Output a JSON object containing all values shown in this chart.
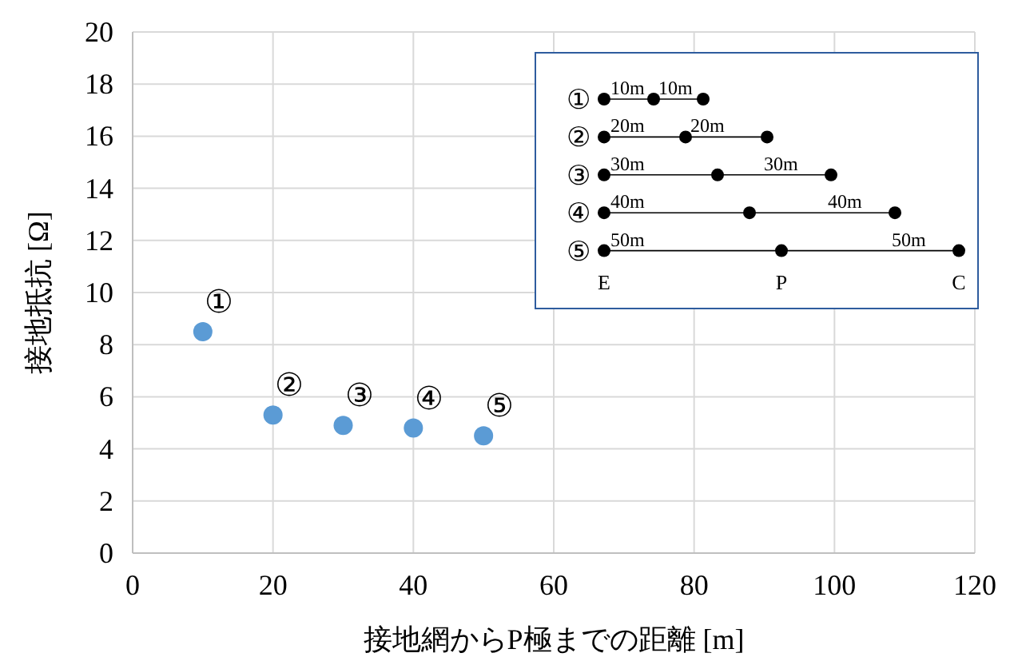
{
  "chart_data": {
    "type": "scatter",
    "xlabel": "接地網からP極までの距離 [m]",
    "ylabel": "接地抵抗 [Ω]",
    "x": [
      10,
      20,
      30,
      40,
      50
    ],
    "series": [
      {
        "color": "#5b9bd5",
        "values": [
          8.5,
          5.3,
          4.9,
          4.8,
          4.5
        ]
      }
    ],
    "xlim": [
      0,
      120
    ],
    "xticks": [
      0,
      20,
      40,
      60,
      80,
      100,
      120
    ],
    "ylim": [
      0,
      20
    ],
    "yticks": [
      0,
      2,
      4,
      6,
      8,
      10,
      12,
      14,
      16,
      18,
      20
    ],
    "grid": true,
    "marker": "circle",
    "annotations": [
      {
        "text": "①",
        "x": 10,
        "y": 8.5
      },
      {
        "text": "②",
        "x": 20,
        "y": 5.3
      },
      {
        "text": "③",
        "x": 30,
        "y": 4.9
      },
      {
        "text": "④",
        "x": 40,
        "y": 4.8
      },
      {
        "text": "⑤",
        "x": 50,
        "y": 4.5
      },
      "①",
      "10m",
      "10m",
      "②",
      "20m",
      "20m",
      "③",
      "30m",
      "30m",
      "④",
      "40m",
      "40m",
      "⑤",
      "50m",
      "50m",
      "E",
      "P",
      "C"
    ]
  }
}
